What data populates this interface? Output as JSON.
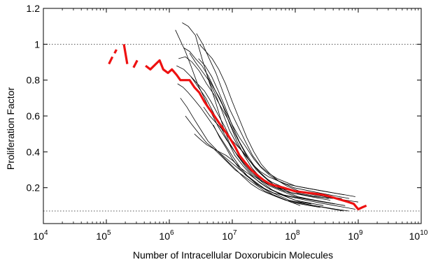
{
  "chart_data": {
    "type": "line",
    "title": "",
    "xlabel": "Number of Intracellular Doxorubicin Molecules",
    "ylabel": "Proliferation Factor",
    "xscale": "log",
    "xlim": [
      10000,
      10000000000
    ],
    "ylim": [
      0,
      1.2
    ],
    "grid": false,
    "legend": "none",
    "x_ticks": [
      {
        "value": 10000,
        "base": "10",
        "exp": "4"
      },
      {
        "value": 100000,
        "base": "10",
        "exp": "5"
      },
      {
        "value": 1000000,
        "base": "10",
        "exp": "6"
      },
      {
        "value": 10000000,
        "base": "10",
        "exp": "7"
      },
      {
        "value": 100000000,
        "base": "10",
        "exp": "8"
      },
      {
        "value": 1000000000,
        "base": "10",
        "exp": "9"
      },
      {
        "value": 10000000000,
        "base": "10",
        "exp": "10"
      }
    ],
    "y_ticks": [
      {
        "value": 0.2,
        "label": "0.2"
      },
      {
        "value": 0.4,
        "label": "0.4"
      },
      {
        "value": 0.6,
        "label": "0.6"
      },
      {
        "value": 0.8,
        "label": "0.8"
      },
      {
        "value": 1.0,
        "label": "1"
      },
      {
        "value": 1.2,
        "label": "1.2"
      }
    ],
    "reference_lines": [
      {
        "y": 1.0,
        "style": "dotted",
        "color": "#555555"
      },
      {
        "y": 0.07,
        "style": "dotted",
        "color": "#555555"
      }
    ],
    "mean_series": {
      "color": "#ee1111",
      "segments": [
        {
          "x": [
            110000,
            125000
          ],
          "y": [
            0.89,
            0.93
          ]
        },
        {
          "x": [
            135000,
            145000
          ],
          "y": [
            0.95,
            0.97
          ]
        },
        {
          "x": [
            190000,
            215000
          ],
          "y": [
            1.0,
            0.89
          ]
        },
        {
          "x": [
            270000,
            310000
          ],
          "y": [
            0.87,
            0.91
          ]
        },
        {
          "x": [
            420000,
            500000,
            610000,
            700000,
            800000,
            950000,
            1100000,
            1300000,
            1500000,
            1800000,
            2100000,
            2500000,
            3000000,
            3600000,
            4300000,
            5200000,
            6200000,
            7500000,
            9000000,
            11000000,
            13000000,
            16000000,
            20000000,
            25000000,
            32000000,
            40000000,
            50000000,
            65000000,
            80000000,
            100000000,
            130000000,
            170000000,
            220000000,
            280000000,
            360000000,
            450000000,
            560000000,
            700000000,
            850000000,
            1000000000,
            1150000000,
            1350000000
          ],
          "y": [
            0.88,
            0.86,
            0.89,
            0.91,
            0.86,
            0.84,
            0.86,
            0.83,
            0.8,
            0.8,
            0.8,
            0.76,
            0.73,
            0.68,
            0.64,
            0.6,
            0.56,
            0.52,
            0.48,
            0.43,
            0.38,
            0.34,
            0.3,
            0.27,
            0.24,
            0.22,
            0.21,
            0.2,
            0.19,
            0.18,
            0.175,
            0.17,
            0.165,
            0.16,
            0.15,
            0.14,
            0.13,
            0.12,
            0.11,
            0.08,
            0.09,
            0.1
          ]
        }
      ]
    },
    "individual_series": [
      {
        "x": [
          1600000,
          2000000,
          2600000,
          3300000,
          4200000,
          5400000,
          7000000,
          9000000,
          12000000,
          16000000,
          21000000,
          28000000,
          37000000,
          50000000,
          70000000,
          100000000,
          150000000,
          230000000,
          350000000,
          550000000
        ],
        "y": [
          1.12,
          1.1,
          1.05,
          0.92,
          0.8,
          0.68,
          0.55,
          0.45,
          0.38,
          0.32,
          0.27,
          0.24,
          0.22,
          0.2,
          0.19,
          0.18,
          0.17,
          0.16,
          0.15,
          0.14
        ]
      },
      {
        "x": [
          1300000,
          1700000,
          2200000,
          2900000,
          3800000,
          5000000,
          6500000,
          8500000,
          11000000,
          15000000,
          20000000,
          27000000,
          36000000,
          48000000,
          65000000,
          90000000,
          130000000,
          190000000,
          280000000,
          420000000
        ],
        "y": [
          0.88,
          0.86,
          0.82,
          0.76,
          0.7,
          0.62,
          0.54,
          0.46,
          0.38,
          0.32,
          0.27,
          0.23,
          0.2,
          0.18,
          0.16,
          0.15,
          0.14,
          0.13,
          0.12,
          0.11
        ]
      },
      {
        "x": [
          1400000,
          1800000,
          2300000,
          3000000,
          3900000,
          5100000,
          6600000,
          8600000,
          11000000,
          14000000,
          18000000,
          24000000,
          32000000,
          43000000,
          58000000,
          80000000,
          110000000,
          160000000,
          230000000,
          340000000
        ],
        "y": [
          0.92,
          0.93,
          0.9,
          0.85,
          0.78,
          0.72,
          0.65,
          0.58,
          0.5,
          0.43,
          0.36,
          0.3,
          0.26,
          0.23,
          0.21,
          0.19,
          0.17,
          0.16,
          0.15,
          0.14
        ]
      },
      {
        "x": [
          1500000,
          1900000,
          2500000,
          3200000,
          4100000,
          5300000,
          6800000,
          8800000,
          11500000,
          15000000,
          20000000,
          27000000,
          36000000,
          50000000,
          70000000,
          100000000,
          140000000,
          200000000,
          300000000,
          450000000,
          700000000
        ],
        "y": [
          0.7,
          0.65,
          0.58,
          0.52,
          0.46,
          0.42,
          0.38,
          0.34,
          0.3,
          0.26,
          0.22,
          0.19,
          0.17,
          0.15,
          0.13,
          0.12,
          0.11,
          0.1,
          0.09,
          0.08,
          0.07
        ]
      },
      {
        "x": [
          2100000,
          2600000,
          3300000,
          4200000,
          5400000,
          7000000,
          9000000,
          12000000,
          16000000,
          21000000,
          28000000,
          38000000,
          52000000,
          72000000,
          100000000,
          140000000,
          200000000,
          290000000,
          420000000,
          600000000
        ],
        "y": [
          0.95,
          0.9,
          0.85,
          0.8,
          0.72,
          0.62,
          0.52,
          0.44,
          0.38,
          0.33,
          0.29,
          0.26,
          0.24,
          0.22,
          0.21,
          0.2,
          0.19,
          0.18,
          0.17,
          0.16
        ]
      },
      {
        "x": [
          2700000,
          3400000,
          4300000,
          5500000,
          7000000,
          9000000,
          12000000,
          16000000,
          21000000,
          28000000,
          38000000,
          52000000,
          72000000,
          100000000,
          140000000,
          200000000,
          290000000,
          420000000,
          620000000,
          900000000
        ],
        "y": [
          1.06,
          1.0,
          0.92,
          0.84,
          0.74,
          0.64,
          0.55,
          0.46,
          0.38,
          0.32,
          0.28,
          0.25,
          0.23,
          0.21,
          0.2,
          0.19,
          0.18,
          0.17,
          0.16,
          0.15
        ]
      },
      {
        "x": [
          1800000,
          2300000,
          3000000,
          3900000,
          5000000,
          6500000,
          8500000,
          11000000,
          14500000,
          19000000,
          25000000,
          33000000,
          45000000,
          62000000,
          85000000,
          120000000,
          170000000,
          250000000
        ],
        "y": [
          0.6,
          0.55,
          0.5,
          0.45,
          0.42,
          0.38,
          0.34,
          0.3,
          0.27,
          0.24,
          0.21,
          0.18,
          0.16,
          0.14,
          0.12,
          0.11,
          0.1,
          0.09
        ]
      },
      {
        "x": [
          3000000,
          3800000,
          4800000,
          6100000,
          7800000,
          10000000,
          13000000,
          17000000,
          22000000,
          29000000,
          39000000,
          53000000,
          73000000,
          100000000,
          140000000,
          200000000,
          290000000,
          430000000,
          650000000,
          1000000000
        ],
        "y": [
          1.0,
          0.96,
          0.92,
          0.86,
          0.78,
          0.68,
          0.58,
          0.48,
          0.4,
          0.33,
          0.28,
          0.24,
          0.21,
          0.19,
          0.17,
          0.16,
          0.15,
          0.14,
          0.13,
          0.12
        ]
      },
      {
        "x": [
          2200000,
          2800000,
          3600000,
          4600000,
          5900000,
          7600000,
          9800000,
          12600000,
          16500000,
          22000000,
          29000000,
          39000000,
          53000000,
          73000000,
          100000000,
          140000000,
          200000000,
          290000000,
          420000000
        ],
        "y": [
          0.82,
          0.78,
          0.74,
          0.68,
          0.61,
          0.54,
          0.46,
          0.39,
          0.33,
          0.28,
          0.24,
          0.21,
          0.19,
          0.17,
          0.15,
          0.14,
          0.13,
          0.12,
          0.11
        ]
      },
      {
        "x": [
          1250000,
          1500000,
          1800000,
          2200000,
          2800000,
          3600000,
          4600000,
          6000000,
          8000000,
          11000000,
          15000000,
          21000000,
          30000000,
          42000000,
          60000000,
          85000000,
          120000000,
          180000000
        ],
        "y": [
          1.08,
          1.02,
          0.96,
          0.88,
          0.78,
          0.7,
          0.62,
          0.54,
          0.47,
          0.4,
          0.34,
          0.28,
          0.23,
          0.19,
          0.16,
          0.14,
          0.12,
          0.11
        ]
      },
      {
        "x": [
          4000000,
          5000000,
          6300000,
          8000000,
          10000000,
          13000000,
          17000000,
          22000000,
          29000000,
          39000000,
          52000000,
          70000000,
          95000000,
          130000000,
          180000000,
          250000000,
          350000000,
          500000000,
          720000000
        ],
        "y": [
          0.82,
          0.76,
          0.7,
          0.62,
          0.55,
          0.48,
          0.42,
          0.36,
          0.31,
          0.27,
          0.24,
          0.22,
          0.2,
          0.19,
          0.18,
          0.17,
          0.16,
          0.15,
          0.14
        ]
      },
      {
        "x": [
          2500000,
          3100000,
          3900000,
          4900000,
          6200000,
          8000000,
          10300000,
          13500000,
          17700000,
          23000000,
          30000000,
          40000000,
          54000000,
          73000000,
          100000000,
          140000000,
          200000000,
          280000000
        ],
        "y": [
          0.5,
          0.47,
          0.44,
          0.42,
          0.4,
          0.38,
          0.35,
          0.31,
          0.28,
          0.25,
          0.22,
          0.19,
          0.17,
          0.15,
          0.13,
          0.12,
          0.11,
          0.1
        ]
      },
      {
        "x": [
          1700000,
          2100000,
          2600000,
          3300000,
          4200000,
          5400000,
          7000000,
          9000000,
          11800000,
          15500000,
          20500000,
          27500000,
          37000000,
          50000000,
          68000000,
          95000000,
          135000000,
          195000000,
          280000000,
          400000000
        ],
        "y": [
          0.98,
          0.96,
          0.92,
          0.88,
          0.82,
          0.74,
          0.66,
          0.56,
          0.46,
          0.38,
          0.31,
          0.26,
          0.22,
          0.2,
          0.18,
          0.17,
          0.16,
          0.15,
          0.145,
          0.14
        ]
      },
      {
        "x": [
          3500000,
          4400000,
          5600000,
          7100000,
          9000000,
          11500000,
          14800000,
          19000000,
          25000000,
          33000000,
          44000000,
          60000000,
          82000000,
          110000000,
          150000000,
          210000000,
          300000000,
          430000000,
          620000000
        ],
        "y": [
          0.65,
          0.6,
          0.56,
          0.52,
          0.48,
          0.44,
          0.4,
          0.35,
          0.3,
          0.26,
          0.22,
          0.19,
          0.17,
          0.15,
          0.14,
          0.13,
          0.12,
          0.11,
          0.1
        ]
      },
      {
        "x": [
          5000000,
          6300000,
          8000000,
          10000000,
          12800000,
          16300000,
          21000000,
          27000000,
          35000000,
          46000000,
          61000000,
          82000000,
          110000000,
          150000000,
          210000000,
          300000000,
          430000000,
          620000000,
          900000000
        ],
        "y": [
          0.55,
          0.48,
          0.42,
          0.36,
          0.31,
          0.27,
          0.24,
          0.21,
          0.19,
          0.17,
          0.16,
          0.15,
          0.14,
          0.13,
          0.12,
          0.11,
          0.1,
          0.09,
          0.08
        ]
      },
      {
        "x": [
          2900000,
          3700000,
          4700000,
          6000000,
          7700000,
          9900000,
          12800000,
          16600000,
          21500000,
          28000000,
          37000000,
          49000000,
          66000000,
          90000000,
          125000000,
          175000000,
          250000000,
          360000000
        ],
        "y": [
          0.92,
          0.88,
          0.82,
          0.74,
          0.65,
          0.55,
          0.46,
          0.39,
          0.33,
          0.28,
          0.24,
          0.21,
          0.19,
          0.17,
          0.16,
          0.15,
          0.14,
          0.13
        ]
      },
      {
        "x": [
          1350000,
          1650000,
          2000000,
          2500000,
          3100000,
          3900000,
          4900000,
          6200000,
          8000000,
          10300000,
          13500000,
          18000000,
          24000000,
          33000000,
          45000000,
          62000000,
          86000000,
          120000000
        ],
        "y": [
          0.78,
          0.76,
          0.73,
          0.69,
          0.65,
          0.6,
          0.55,
          0.49,
          0.43,
          0.37,
          0.31,
          0.26,
          0.22,
          0.19,
          0.16,
          0.14,
          0.12,
          0.1
        ]
      },
      {
        "x": [
          6000000,
          7600000,
          9600000,
          12200000,
          15500000,
          20000000,
          26000000,
          34000000,
          45000000,
          60000000,
          80000000,
          108000000,
          145000000,
          200000000,
          280000000,
          400000000,
          580000000
        ],
        "y": [
          0.4,
          0.37,
          0.34,
          0.31,
          0.28,
          0.25,
          0.22,
          0.19,
          0.17,
          0.15,
          0.13,
          0.12,
          0.11,
          0.1,
          0.09,
          0.08,
          0.07
        ]
      }
    ]
  }
}
